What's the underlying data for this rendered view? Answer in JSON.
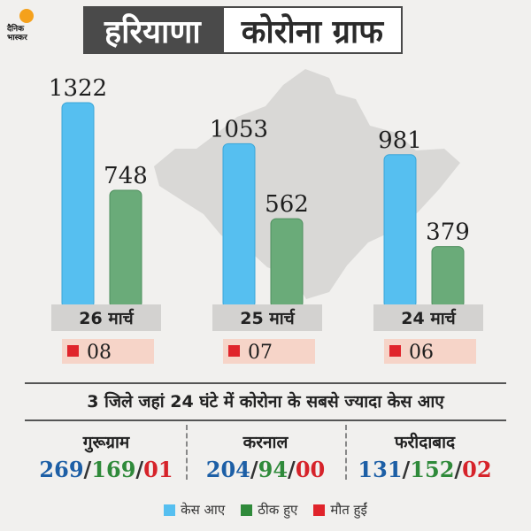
{
  "brand": {
    "name": "दैनिक भास्कर"
  },
  "header": {
    "state": "हरियाणा",
    "subtitle": "कोरोना ग्राफ"
  },
  "colors": {
    "cases": "#56bff0",
    "recovered": "#6aab79",
    "deaths": "#e0242b"
  },
  "chart_data": {
    "type": "bar",
    "title": "कोरोना ग्राफ",
    "categories": [
      "26 मार्च",
      "25 मार्च",
      "24 मार्च"
    ],
    "series": [
      {
        "name": "केस आए",
        "values": [
          1322,
          1053,
          981
        ]
      },
      {
        "name": "ठीक हुए",
        "values": [
          748,
          562,
          379
        ]
      }
    ],
    "deaths": {
      "name": "मौत हुईं",
      "values": [
        "08",
        "07",
        "06"
      ]
    },
    "ylim": [
      0,
      1322
    ],
    "grid": false,
    "legend": "bottom"
  },
  "districts": {
    "heading": "3 जिले जहां 24 घंटे में कोरोना के सबसे ज्यादा केस आए",
    "items": [
      {
        "name": "गुरूग्राम",
        "cases": "269",
        "recovered": "169",
        "deaths": "01"
      },
      {
        "name": "करनाल",
        "cases": "204",
        "recovered": "94",
        "deaths": "00"
      },
      {
        "name": "फरीदाबाद",
        "cases": "131",
        "recovered": "152",
        "deaths": "02"
      }
    ]
  },
  "legend": {
    "cases": "केस आए",
    "recovered": "ठीक हुए",
    "deaths": "मौत हुईं"
  }
}
